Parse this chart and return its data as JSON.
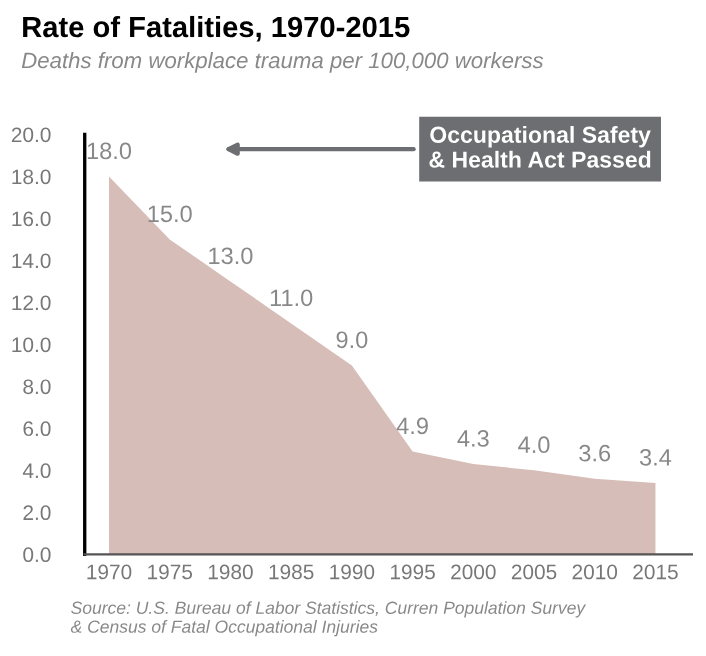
{
  "chart_data": {
    "type": "area",
    "title": "Rate of Fatalities, 1970-2015",
    "subtitle": "Deaths from workplace trauma per 100,000 workerss",
    "x": [
      1970,
      1975,
      1980,
      1985,
      1990,
      1995,
      2000,
      2005,
      2010,
      2015
    ],
    "series": [
      {
        "color": "#d6bdb7",
        "values": [
          18.0,
          15.0,
          13.0,
          11.0,
          9.0,
          4.9,
          4.3,
          4.0,
          3.6,
          3.4
        ]
      }
    ],
    "value_labels": [
      "18.0",
      "15.0",
      "13.0",
      "11.0",
      "9.0",
      "4.9",
      "4.3",
      "4.0",
      "3.6",
      "3.4"
    ],
    "xlim": [
      1968,
      2018
    ],
    "xticks": [
      1970,
      1975,
      1980,
      1985,
      1990,
      1995,
      2000,
      2005,
      2010,
      2015
    ],
    "ylim": [
      0,
      20
    ],
    "yticks": [
      {
        "value": 0,
        "label": "0.0"
      },
      {
        "value": 2,
        "label": "2.0"
      },
      {
        "value": 4,
        "label": "4.0"
      },
      {
        "value": 6,
        "label": "6.0"
      },
      {
        "value": 8,
        "label": "8.0"
      },
      {
        "value": 10,
        "label": "10.0"
      },
      {
        "value": 12,
        "label": "12.0"
      },
      {
        "value": 14,
        "label": "14.0"
      },
      {
        "value": 16,
        "label": "16.0"
      },
      {
        "value": 18,
        "label": "18.0"
      },
      {
        "value": 20,
        "label": "20.0"
      }
    ],
    "grid": false,
    "legend": false,
    "annotations": [
      "Occupational Safety\n& Health Act Passed",
      "Source: U.S. Bureau of Labor Statistics, Curren Population Survey\n& Census of Fatal Occupational Injuries"
    ]
  }
}
